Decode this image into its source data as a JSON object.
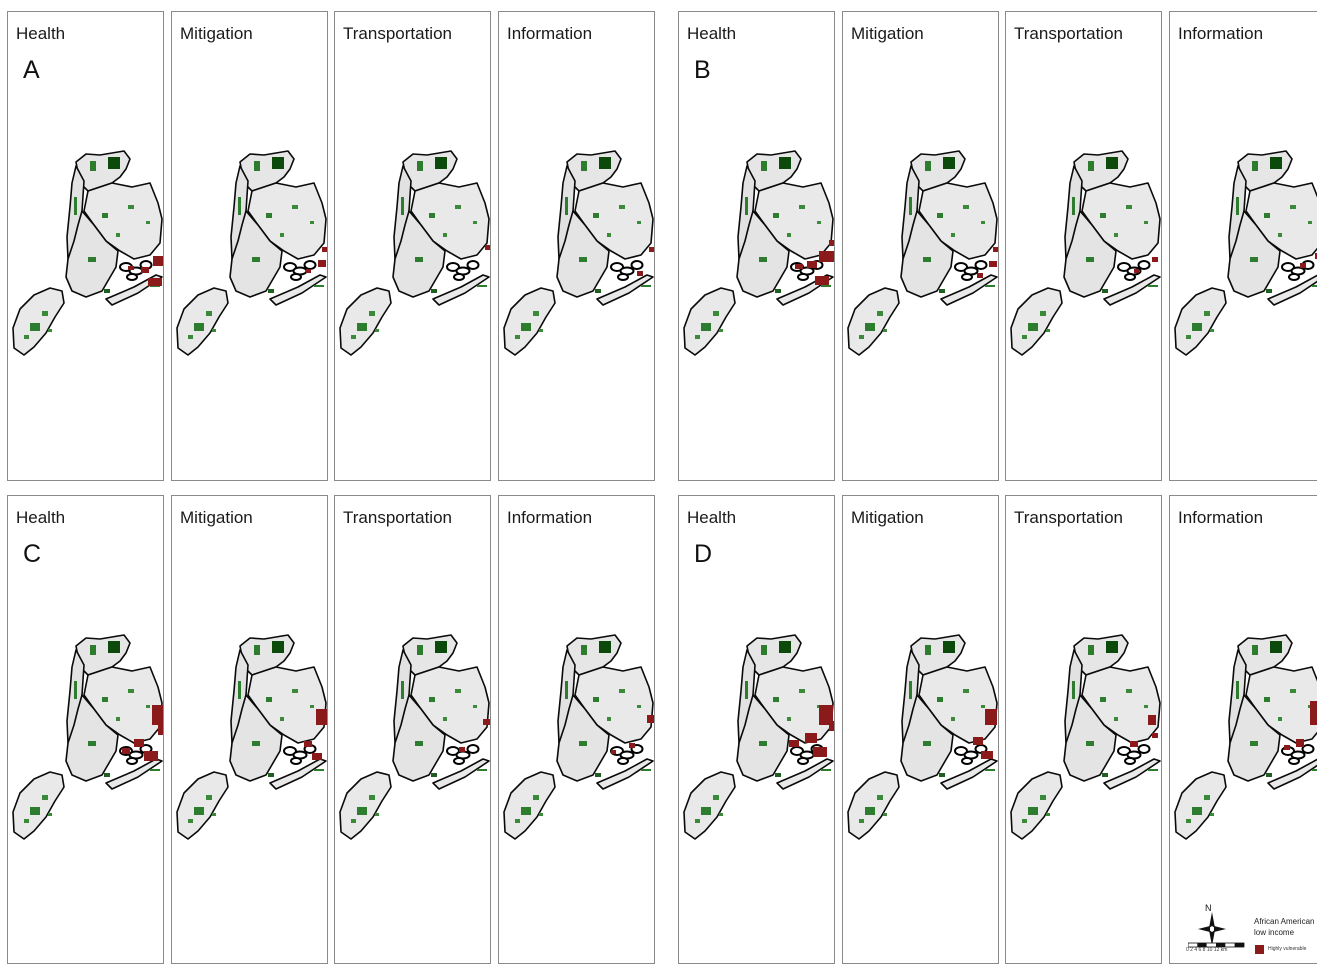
{
  "groups": [
    {
      "label": "A",
      "panels": [
        {
          "title": "Health",
          "hot": [
            [
              145,
              111,
              14,
              10
            ],
            [
              133,
              122,
              8,
              6
            ],
            [
              140,
              133,
              14,
              8
            ],
            [
              120,
              121,
              6,
              4
            ],
            [
              158,
              102,
              7,
              5
            ]
          ]
        },
        {
          "title": "Mitigation",
          "hot": [
            [
              146,
              115,
              8,
              7
            ],
            [
              134,
              124,
              5,
              4
            ],
            [
              150,
              102,
              6,
              5
            ]
          ]
        },
        {
          "title": "Transportation",
          "hot": [
            [
              150,
              100,
              6,
              5
            ]
          ]
        },
        {
          "title": "Information",
          "hot": [
            [
              138,
              126,
              6,
              5
            ],
            [
              150,
              102,
              6,
              5
            ]
          ]
        }
      ]
    },
    {
      "label": "B",
      "panels": [
        {
          "title": "Health",
          "hot": [
            [
              140,
              106,
              16,
              11
            ],
            [
              128,
              116,
              10,
              7
            ],
            [
              136,
              131,
              14,
              9
            ],
            [
              116,
              119,
              8,
              5
            ],
            [
              150,
              95,
              8,
              6
            ]
          ]
        },
        {
          "title": "Mitigation",
          "hot": [
            [
              146,
              116,
              8,
              6
            ],
            [
              134,
              128,
              6,
              5
            ],
            [
              150,
              102,
              6,
              5
            ]
          ]
        },
        {
          "title": "Transportation",
          "hot": [
            [
              146,
              112,
              6,
              5
            ],
            [
              128,
              124,
              5,
              4
            ],
            [
              156,
              101,
              5,
              4
            ]
          ]
        },
        {
          "title": "Information",
          "hot": [
            [
              145,
              108,
              8,
              6
            ],
            [
              130,
              118,
              6,
              5
            ],
            [
              160,
              101,
              6,
              5
            ]
          ]
        }
      ]
    },
    {
      "label": "C",
      "panels": [
        {
          "title": "Health",
          "hot": [
            [
              144,
              76,
              14,
              20
            ],
            [
              126,
              110,
              10,
              8
            ],
            [
              136,
              122,
              14,
              10
            ],
            [
              114,
              119,
              8,
              6
            ],
            [
              150,
              96,
              8,
              10
            ]
          ]
        },
        {
          "title": "Mitigation",
          "hot": [
            [
              144,
              80,
              12,
              16
            ],
            [
              132,
              112,
              8,
              6
            ],
            [
              140,
              124,
              10,
              7
            ]
          ]
        },
        {
          "title": "Transportation",
          "hot": [
            [
              148,
              90,
              8,
              6
            ],
            [
              124,
              118,
              6,
              5
            ]
          ]
        },
        {
          "title": "Information",
          "hot": [
            [
              148,
              86,
              8,
              8
            ],
            [
              130,
              114,
              6,
              5
            ],
            [
              112,
              121,
              5,
              4
            ]
          ]
        }
      ]
    },
    {
      "label": "D",
      "panels": [
        {
          "title": "Health",
          "hot": [
            [
              140,
              76,
              14,
              20
            ],
            [
              126,
              104,
              12,
              10
            ],
            [
              134,
              118,
              14,
              10
            ],
            [
              110,
              111,
              10,
              7
            ],
            [
              150,
              92,
              8,
              10
            ]
          ]
        },
        {
          "title": "Mitigation",
          "hot": [
            [
              142,
              80,
              12,
              16
            ],
            [
              130,
              108,
              10,
              8
            ],
            [
              138,
              122,
              12,
              8
            ]
          ]
        },
        {
          "title": "Transportation",
          "hot": [
            [
              142,
              86,
              8,
              10
            ],
            [
              124,
              112,
              8,
              6
            ],
            [
              146,
              104,
              6,
              5
            ]
          ]
        },
        {
          "title": "Information",
          "hot": [
            [
              140,
              72,
              12,
              24
            ],
            [
              126,
              110,
              8,
              8
            ],
            [
              114,
              116,
              6,
              5
            ]
          ]
        }
      ]
    }
  ],
  "legend": {
    "north": "N",
    "title": "African American low income",
    "item": "Highly vulnerable",
    "scale": "0  2  4  6  8  10 12 km",
    "hot_color": "#8b1a1a"
  }
}
